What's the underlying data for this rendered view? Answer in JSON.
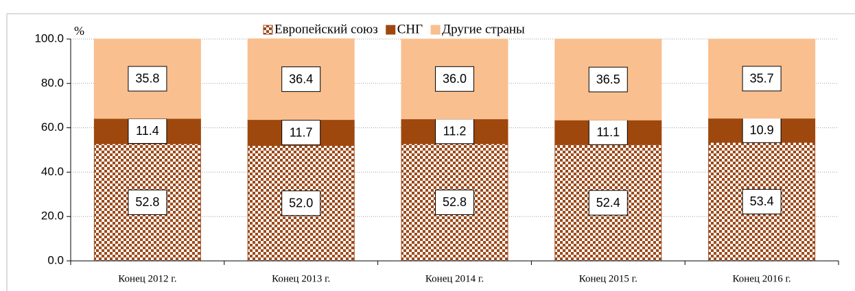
{
  "chart_data": {
    "type": "stacked_bar",
    "y_label": "%",
    "categories": [
      "Конец 2012 г.",
      "Конец 2013 г.",
      "Конец 2014 г.",
      "Конец 2015 г.",
      "Конец 2016 г."
    ],
    "series": [
      {
        "name": "Европейский союз",
        "color": "#9c4a1a",
        "pattern": "checkerboard",
        "values": [
          52.8,
          52.0,
          52.8,
          52.4,
          53.4
        ],
        "value_labels": [
          "52.8",
          "52.0",
          "52.8",
          "52.4",
          "53.4"
        ]
      },
      {
        "name": "СНГ",
        "color": "#9e480e",
        "values": [
          11.4,
          11.7,
          11.2,
          11.1,
          10.9
        ],
        "value_labels": [
          "11.4",
          "11.7",
          "11.2",
          "11.1",
          "10.9"
        ]
      },
      {
        "name": "Другие страны",
        "color": "#f9bf8f",
        "values": [
          35.8,
          36.4,
          36.0,
          36.5,
          35.7
        ],
        "value_labels": [
          "35.8",
          "36.4",
          "36.0",
          "36.5",
          "35.7"
        ]
      }
    ],
    "ylim": [
      0,
      100
    ],
    "yticks": [
      {
        "value": 0,
        "label": "0.0"
      },
      {
        "value": 20,
        "label": "20.0"
      },
      {
        "value": 40,
        "label": "40.0"
      },
      {
        "value": 60,
        "label": "60.0"
      },
      {
        "value": 80,
        "label": "80.0"
      },
      {
        "value": 100,
        "label": "100.0"
      }
    ],
    "grid": true,
    "legend": "top"
  }
}
